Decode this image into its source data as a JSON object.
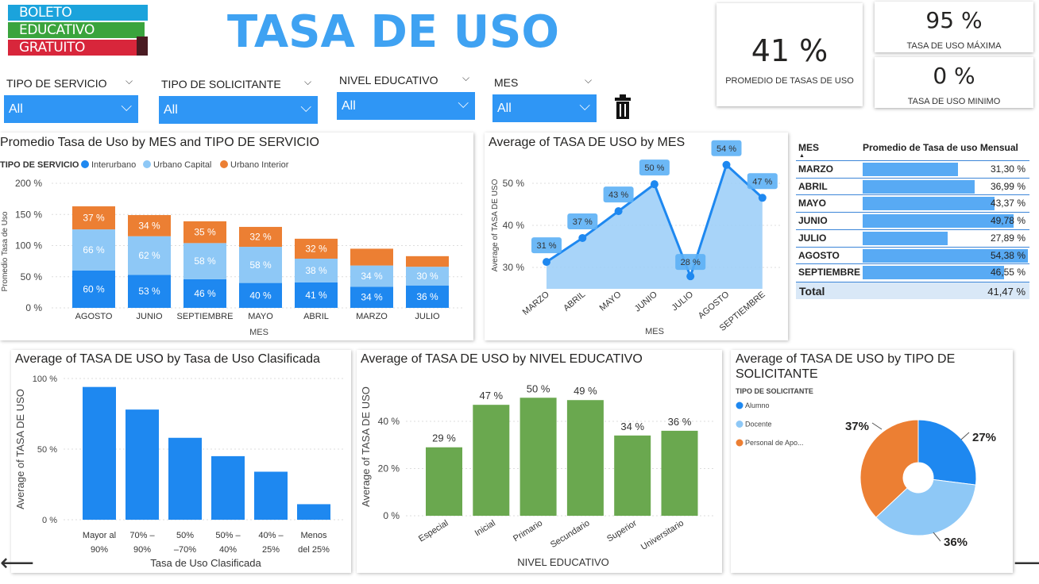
{
  "logo": {
    "line1": "BOLETO",
    "line2": "EDUCATIVO",
    "line3": "GRATUITO"
  },
  "title": "TASA DE USO",
  "kpis": {
    "avg": {
      "value": "41 %",
      "label": "PROMEDIO DE TASAS DE USO"
    },
    "max": {
      "value": "95 %",
      "label": "TASA DE USO MÁXIMA"
    },
    "min": {
      "value": "0 %",
      "label": "TASA DE USO MINIMO"
    }
  },
  "slicers": [
    {
      "title": "TIPO DE SERVICIO",
      "value": "All"
    },
    {
      "title": "TIPO DE SOLICITANTE",
      "value": "All"
    },
    {
      "title": "NIVEL EDUCATIVO",
      "value": "All"
    },
    {
      "title": "MES",
      "value": "All"
    }
  ],
  "icons": {
    "slicer_toggle": "chevron-down-icon",
    "slicer_dropdown": "chevron-down-icon",
    "clear_filters": "trash-icon",
    "prev": "arrow-left-icon",
    "next": "arrow-right-icon"
  },
  "glyphs": {
    "chevron": "⌵",
    "prev": "⟵",
    "next": "⟶"
  },
  "colors": {
    "interurbano": "#1e88f0",
    "urbano_capital": "#8ec8f6",
    "urbano_interior": "#ec7f33",
    "line": "#1e88f0",
    "area": "#99ccf8",
    "green": "#6aa84f",
    "blue_bar": "#1e88f0",
    "accent": "#3fa2f2"
  },
  "chart_data": [
    {
      "id": "stacked",
      "type": "bar",
      "stacked": true,
      "title": "Promedio Tasa de Uso by MES and TIPO DE SERVICIO",
      "legend_title": "TIPO DE SERVICIO",
      "legend_placement": "top-left",
      "xlabel": "MES",
      "ylabel": "Promedio Tasa de Uso",
      "categories": [
        "AGOSTO",
        "JUNIO",
        "SEPTIEMBRE",
        "MAYO",
        "ABRIL",
        "MARZO",
        "JULIO"
      ],
      "series": [
        {
          "name": "Interurbano",
          "values": [
            60,
            53,
            46,
            40,
            41,
            34,
            36
          ],
          "labels": [
            "60 %",
            "53 %",
            "46 %",
            "40 %",
            "41 %",
            "34 %",
            "36 %"
          ]
        },
        {
          "name": "Urbano Capital",
          "values": [
            66,
            62,
            58,
            58,
            38,
            34,
            30
          ],
          "labels": [
            "66 %",
            "62 %",
            "58 %",
            "58 %",
            "38 %",
            "34 %",
            "30 %"
          ]
        },
        {
          "name": "Urbano Interior",
          "values": [
            37,
            34,
            35,
            32,
            32,
            27,
            17
          ],
          "labels": [
            "37 %",
            "34 %",
            "35 %",
            "32 %",
            "32 %",
            "",
            ""
          ]
        }
      ],
      "ylim": [
        0,
        200
      ],
      "yticks": [
        "0 %",
        "50 %",
        "100 %",
        "150 %",
        "200 %"
      ],
      "grid": true
    },
    {
      "id": "line",
      "type": "area",
      "title": "Average of TASA DE USO by MES",
      "xlabel": "MES",
      "ylabel": "Average of TASA DE USO",
      "categories": [
        "MARZO",
        "ABRIL",
        "MAYO",
        "JUNIO",
        "JULIO",
        "AGOSTO",
        "SEPTIEMBRE"
      ],
      "values": [
        31.3,
        36.99,
        43.37,
        49.78,
        27.89,
        54.38,
        46.55
      ],
      "labels": [
        "31 %",
        "37 %",
        "43 %",
        "50 %",
        "28 %",
        "54 %",
        "47 %"
      ],
      "ylim": [
        25,
        55
      ],
      "yticks": [
        {
          "v": 30,
          "t": "30 %"
        },
        {
          "v": 40,
          "t": "40 %"
        },
        {
          "v": 50,
          "t": "50 %"
        }
      ],
      "grid": true
    },
    {
      "id": "table",
      "type": "table",
      "columns": [
        "MES",
        "Promedio de Tasa de uso Mensual"
      ],
      "rows": [
        {
          "mes": "MARZO",
          "value": 31.3,
          "label": "31,30 %"
        },
        {
          "mes": "ABRIL",
          "value": 36.99,
          "label": "36,99 %"
        },
        {
          "mes": "MAYO",
          "value": 43.37,
          "label": "43,37 %"
        },
        {
          "mes": "JUNIO",
          "value": 49.78,
          "label": "49,78 %"
        },
        {
          "mes": "JULIO",
          "value": 27.89,
          "label": "27,89 %"
        },
        {
          "mes": "AGOSTO",
          "value": 54.38,
          "label": "54,38 %"
        },
        {
          "mes": "SEPTIEMBRE",
          "value": 46.55,
          "label": "46,55 %"
        }
      ],
      "total": {
        "label": "Total",
        "value": "41,47 %"
      }
    },
    {
      "id": "clasif",
      "type": "bar",
      "title": "Average of TASA DE USO by Tasa de Uso Clasificada",
      "xlabel": "Tasa de Uso Clasificada",
      "ylabel": "Average of TASA DE USO",
      "categories": [
        [
          "Mayor al",
          "90%"
        ],
        [
          "70% –",
          "90%"
        ],
        [
          "50%",
          "–70%"
        ],
        [
          "50% –",
          "40%"
        ],
        [
          "40% –",
          "25%"
        ],
        [
          "Menos",
          "del 25%"
        ]
      ],
      "values": [
        94,
        78,
        58,
        45,
        34,
        11
      ],
      "ylim": [
        0,
        100
      ],
      "yticks": [
        {
          "v": 0,
          "t": "0 %"
        },
        {
          "v": 50,
          "t": "50 %"
        },
        {
          "v": 100,
          "t": "100 %"
        }
      ],
      "grid": true
    },
    {
      "id": "nivel",
      "type": "bar",
      "title": "Average of TASA DE USO by NIVEL EDUCATIVO",
      "xlabel": "NIVEL EDUCATIVO",
      "ylabel": "Average of TASA DE USO",
      "categories": [
        "Especial",
        "Inicial",
        "Primario",
        "Secundario",
        "Superior",
        "Universitario"
      ],
      "values": [
        29,
        47,
        50,
        49,
        34,
        36
      ],
      "labels": [
        "29 %",
        "47 %",
        "50 %",
        "49 %",
        "34 %",
        "36 %"
      ],
      "ylim": [
        0,
        55
      ],
      "yticks": [
        {
          "v": 0,
          "t": "0 %"
        },
        {
          "v": 20,
          "t": "20 %"
        },
        {
          "v": 40,
          "t": "40 %"
        }
      ],
      "grid": true
    },
    {
      "id": "pie",
      "type": "pie",
      "donut": true,
      "title": "Average of TASA DE USO by TIPO DE SOLICITANTE",
      "title_lines": [
        "Average of TASA DE USO by TIPO DE",
        "SOLICITANTE"
      ],
      "legend_title": "TIPO DE SOLICITANTE",
      "legend_placement": "left",
      "categories": [
        "Alumno",
        "Docente",
        "Personal de Apo..."
      ],
      "values": [
        27,
        36,
        37
      ],
      "labels": [
        "27%",
        "36%",
        "37%"
      ]
    }
  ]
}
